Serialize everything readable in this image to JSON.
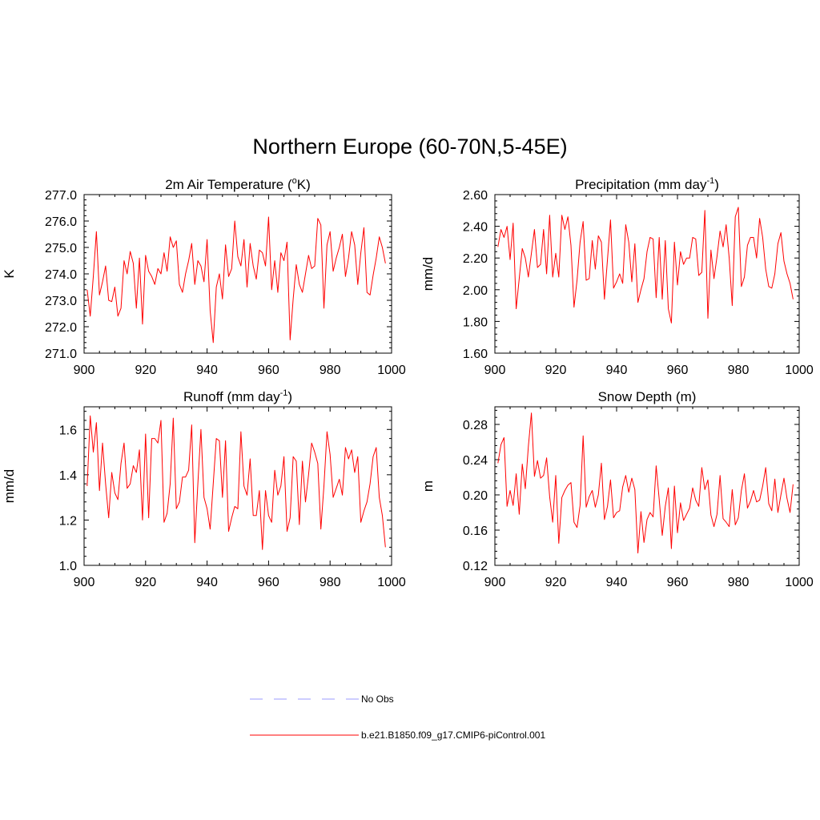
{
  "title": "Northern Europe (60-70N,5-45E)",
  "colors": {
    "model": "#ff0000",
    "obs": "#9b9bff"
  },
  "legend": [
    {
      "label": "No Obs",
      "style": "dashed",
      "color": "#9b9bff"
    },
    {
      "label": "b.e21.B1850.f09_g17.CMIP6-piControl.001",
      "style": "solid",
      "color": "#ff0000"
    }
  ],
  "chart_data": [
    {
      "type": "line",
      "title": "2m Air Temperature (",
      "title_super": "o",
      "title_suffix": "K)",
      "ylabel": "K",
      "xlim": [
        900,
        1000
      ],
      "ylim": [
        271.0,
        277.0
      ],
      "xticks": [
        900,
        920,
        940,
        960,
        980,
        1000
      ],
      "yticks": [
        "271.0",
        "272.0",
        "273.0",
        "274.0",
        "275.0",
        "276.0",
        "277.0"
      ],
      "x_start": 901,
      "series": [
        {
          "values": [
            273.4,
            272.4,
            273.9,
            275.6,
            273.2,
            273.7,
            274.3,
            273.0,
            272.95,
            273.5,
            272.4,
            272.7,
            274.5,
            274.0,
            274.85,
            274.4,
            272.7,
            274.6,
            272.1,
            274.7,
            274.1,
            273.9,
            273.6,
            274.2,
            274.0,
            274.8,
            274.1,
            275.4,
            275.0,
            275.25,
            273.6,
            273.3,
            274.0,
            274.5,
            275.15,
            273.6,
            274.5,
            274.3,
            273.7,
            275.3,
            272.6,
            271.4,
            273.5,
            274.0,
            273.05,
            275.1,
            273.9,
            274.2,
            276.0,
            274.65,
            274.3,
            275.3,
            273.5,
            275.15,
            274.3,
            273.8,
            274.9,
            274.8,
            274.3,
            276.15,
            273.4,
            274.5,
            273.3,
            274.8,
            274.5,
            275.2,
            271.5,
            273.05,
            274.35,
            273.6,
            273.3,
            274.0,
            274.7,
            274.2,
            274.3,
            276.1,
            275.85,
            272.7,
            275.1,
            275.6,
            274.1,
            274.6,
            275.0,
            275.5,
            273.9,
            274.6,
            275.6,
            275.1,
            273.6,
            274.8,
            275.75,
            273.3,
            273.2,
            273.95,
            274.6,
            275.4,
            275.0,
            274.4
          ]
        }
      ]
    },
    {
      "type": "line",
      "title": "Precipitation (mm day",
      "title_super": "-1",
      "title_suffix": ")",
      "ylabel": "mm/d",
      "xlim": [
        900,
        1000
      ],
      "ylim": [
        1.6,
        2.6
      ],
      "xticks": [
        900,
        920,
        940,
        960,
        980,
        1000
      ],
      "yticks": [
        "1.60",
        "1.80",
        "2.00",
        "2.20",
        "2.40",
        "2.60"
      ],
      "x_start": 901,
      "series": [
        {
          "values": [
            2.27,
            2.38,
            2.33,
            2.4,
            2.19,
            2.42,
            1.88,
            2.07,
            2.26,
            2.2,
            2.08,
            2.23,
            2.38,
            2.14,
            2.16,
            2.38,
            2.1,
            2.47,
            2.08,
            2.23,
            2.08,
            2.47,
            2.38,
            2.46,
            2.28,
            1.89,
            2.06,
            2.3,
            2.43,
            2.06,
            2.07,
            2.31,
            2.13,
            2.34,
            2.3,
            1.94,
            2.19,
            2.44,
            2.01,
            2.05,
            2.1,
            2.04,
            2.41,
            2.3,
            2.05,
            2.29,
            1.92,
            2.0,
            2.07,
            2.24,
            2.33,
            2.32,
            1.95,
            2.33,
            1.94,
            2.31,
            1.88,
            1.79,
            2.3,
            2.03,
            2.24,
            2.16,
            2.2,
            2.2,
            2.33,
            2.32,
            2.09,
            2.11,
            2.5,
            1.82,
            2.25,
            2.07,
            2.21,
            2.37,
            2.27,
            2.41,
            2.2,
            1.9,
            2.46,
            2.52,
            2.02,
            2.08,
            2.28,
            2.33,
            2.33,
            2.2,
            2.45,
            2.33,
            2.13,
            2.02,
            2.01,
            2.1,
            2.29,
            2.36,
            2.18,
            2.1,
            2.04,
            1.94
          ]
        }
      ]
    },
    {
      "type": "line",
      "title": "Runoff (mm day",
      "title_super": "-1",
      "title_suffix": ")",
      "ylabel": "mm/d",
      "xlim": [
        900,
        1000
      ],
      "ylim": [
        1.0,
        1.7
      ],
      "xticks": [
        900,
        920,
        940,
        960,
        980,
        1000
      ],
      "yticks": [
        "1.0",
        "1.2",
        "1.4",
        "1.6"
      ],
      "x_start": 901,
      "series": [
        {
          "values": [
            1.35,
            1.66,
            1.5,
            1.63,
            1.33,
            1.54,
            1.36,
            1.21,
            1.41,
            1.32,
            1.29,
            1.45,
            1.54,
            1.34,
            1.36,
            1.44,
            1.41,
            1.51,
            1.2,
            1.58,
            1.21,
            1.56,
            1.56,
            1.54,
            1.64,
            1.19,
            1.23,
            1.36,
            1.65,
            1.25,
            1.28,
            1.39,
            1.39,
            1.42,
            1.62,
            1.1,
            1.36,
            1.6,
            1.3,
            1.25,
            1.16,
            1.36,
            1.56,
            1.55,
            1.3,
            1.55,
            1.15,
            1.21,
            1.26,
            1.25,
            1.59,
            1.35,
            1.31,
            1.47,
            1.22,
            1.22,
            1.33,
            1.07,
            1.33,
            1.22,
            1.19,
            1.42,
            1.31,
            1.35,
            1.48,
            1.15,
            1.21,
            1.48,
            1.46,
            1.18,
            1.46,
            1.28,
            1.4,
            1.54,
            1.5,
            1.45,
            1.16,
            1.35,
            1.59,
            1.49,
            1.3,
            1.34,
            1.38,
            1.31,
            1.52,
            1.47,
            1.51,
            1.41,
            1.48,
            1.19,
            1.24,
            1.28,
            1.36,
            1.48,
            1.52,
            1.3,
            1.22,
            1.08
          ]
        }
      ]
    },
    {
      "type": "line",
      "title": "Snow Depth (m)",
      "title_super": "",
      "title_suffix": "",
      "ylabel": "m",
      "xlim": [
        900,
        1000
      ],
      "ylim": [
        0.12,
        0.3
      ],
      "xticks": [
        900,
        920,
        940,
        960,
        980,
        1000
      ],
      "yticks": [
        "0.12",
        "0.16",
        "0.20",
        "0.24",
        "0.28"
      ],
      "x_start": 901,
      "series": [
        {
          "values": [
            0.236,
            0.257,
            0.265,
            0.187,
            0.205,
            0.188,
            0.224,
            0.178,
            0.235,
            0.207,
            0.255,
            0.293,
            0.221,
            0.239,
            0.219,
            0.222,
            0.242,
            0.198,
            0.169,
            0.222,
            0.145,
            0.197,
            0.205,
            0.211,
            0.214,
            0.169,
            0.163,
            0.188,
            0.267,
            0.186,
            0.198,
            0.205,
            0.186,
            0.2,
            0.236,
            0.172,
            0.187,
            0.217,
            0.174,
            0.18,
            0.182,
            0.209,
            0.222,
            0.203,
            0.219,
            0.206,
            0.134,
            0.181,
            0.146,
            0.172,
            0.18,
            0.175,
            0.233,
            0.195,
            0.154,
            0.187,
            0.208,
            0.139,
            0.21,
            0.157,
            0.191,
            0.171,
            0.178,
            0.185,
            0.208,
            0.194,
            0.187,
            0.231,
            0.206,
            0.217,
            0.177,
            0.164,
            0.178,
            0.222,
            0.173,
            0.169,
            0.164,
            0.206,
            0.166,
            0.174,
            0.205,
            0.224,
            0.185,
            0.193,
            0.205,
            0.192,
            0.194,
            0.21,
            0.231,
            0.19,
            0.182,
            0.218,
            0.18,
            0.2,
            0.219,
            0.196,
            0.18,
            0.212
          ]
        }
      ]
    }
  ]
}
